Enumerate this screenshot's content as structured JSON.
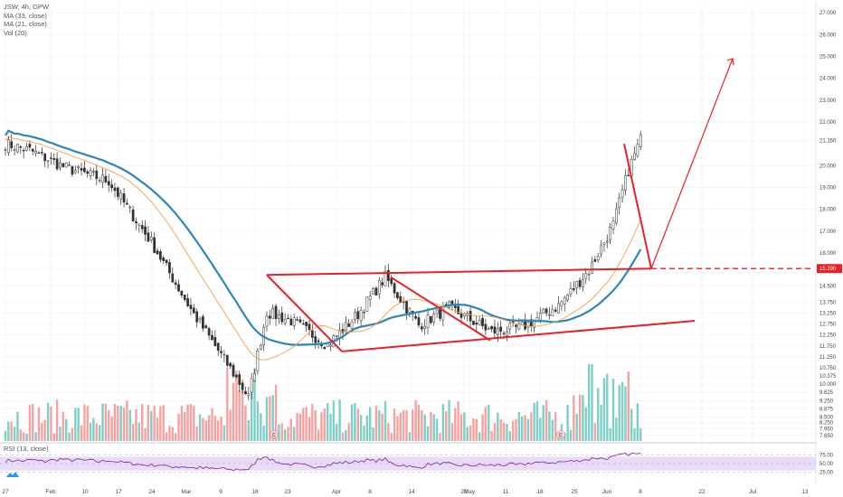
{
  "legend": {
    "symbol_line": "JSW, 4h, GPW",
    "ma1": "MA (33, close)",
    "ma2": "MA (21, close)",
    "vol": "Vol (20)",
    "rsi": "RSI (13, close)"
  },
  "colors": {
    "up": "#26a69a",
    "down": "#ef5350",
    "vol_up": "#7fcfc7",
    "vol_down": "#f4a3a1",
    "ma33": "#2e86b8",
    "ma21": "#f0a04b",
    "drawing": "#e8202a",
    "rsi_line": "#7b1fa2",
    "rsi_band": "#e9dcf5",
    "grid": "#eef0f3"
  },
  "chart_data": {
    "type": "candlestick",
    "y_ticks": [
      "27.000",
      "26.000",
      "25.000",
      "24.000",
      "23.000",
      "22.000",
      "21.150",
      "20.000",
      "19.000",
      "18.000",
      "17.000",
      "16.000",
      "15.290",
      "14.500",
      "13.750",
      "13.250",
      "12.750",
      "12.250",
      "11.750",
      "11.250",
      "10.750",
      "10.375",
      "10.000",
      "9.625",
      "9.250",
      "8.875",
      "8.500",
      "8.250",
      "7.950",
      "7.650"
    ],
    "y_range": [
      7.4,
      27.5
    ],
    "x_ticks": [
      "27",
      "Feb",
      "10",
      "17",
      "24",
      "Mar",
      "9",
      "16",
      "23",
      "Apr",
      "8",
      "14",
      "20",
      "May",
      "11",
      "18",
      "25",
      "Jun",
      "8",
      "22",
      "Jul",
      "13"
    ],
    "rsi_ticks": [
      "75.00",
      "50.00",
      "25.00"
    ],
    "rsi_range": [
      0,
      100
    ],
    "rsi_band": [
      30,
      70
    ],
    "last_price": "21.150",
    "resistance_price": "15.290",
    "bars": 210,
    "open_start": 20.7,
    "close_anchors": [
      [
        0,
        21.0
      ],
      [
        8,
        20.7
      ],
      [
        20,
        19.9
      ],
      [
        34,
        19.3
      ],
      [
        48,
        16.5
      ],
      [
        62,
        13.2
      ],
      [
        75,
        10.5
      ],
      [
        80,
        9.4
      ],
      [
        86,
        13.3
      ],
      [
        94,
        12.9
      ],
      [
        106,
        11.8
      ],
      [
        116,
        13.2
      ],
      [
        125,
        14.9
      ],
      [
        136,
        12.7
      ],
      [
        146,
        13.5
      ],
      [
        160,
        12.4
      ],
      [
        170,
        12.6
      ],
      [
        182,
        13.6
      ],
      [
        192,
        15.2
      ],
      [
        200,
        17.3
      ],
      [
        205,
        19.8
      ],
      [
        209,
        21.2
      ]
    ],
    "markers": [
      "E",
      "E"
    ],
    "events": {
      "resistance": [
        15.0,
        15.29
      ],
      "support": [
        11.5,
        12.9
      ],
      "pennant": [
        15.0,
        11.5,
        14.9,
        12.0
      ],
      "target": 24.9
    }
  }
}
